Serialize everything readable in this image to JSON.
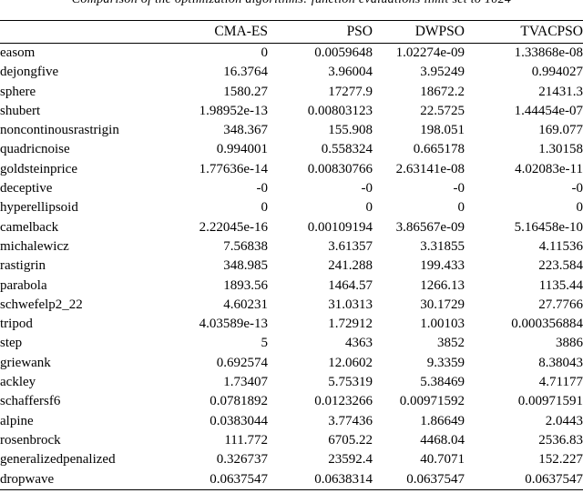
{
  "caption": "Comparison of the optimization algorithms: function evaluations limit set to 1024",
  "table": {
    "columns": [
      "CMA-ES",
      "PSO",
      "DWPSO",
      "TVACPSO"
    ],
    "rows": [
      {
        "name": "easom",
        "values": [
          "0",
          "0.0059648",
          "1.02274e-09",
          "1.33868e-08"
        ]
      },
      {
        "name": "dejongfive",
        "values": [
          "16.3764",
          "3.96004",
          "3.95249",
          "0.994027"
        ]
      },
      {
        "name": "sphere",
        "values": [
          "1580.27",
          "17277.9",
          "18672.2",
          "21431.3"
        ]
      },
      {
        "name": "shubert",
        "values": [
          "1.98952e-13",
          "0.00803123",
          "22.5725",
          "1.44454e-07"
        ]
      },
      {
        "name": "noncontinousrastrigin",
        "values": [
          "348.367",
          "155.908",
          "198.051",
          "169.077"
        ]
      },
      {
        "name": "quadricnoise",
        "values": [
          "0.994001",
          "0.558324",
          "0.665178",
          "1.30158"
        ]
      },
      {
        "name": "goldsteinprice",
        "values": [
          "1.77636e-14",
          "0.00830766",
          "2.63141e-08",
          "4.02083e-11"
        ]
      },
      {
        "name": "deceptive",
        "values": [
          "-0",
          "-0",
          "-0",
          "-0"
        ]
      },
      {
        "name": "hyperellipsoid",
        "values": [
          "0",
          "0",
          "0",
          "0"
        ]
      },
      {
        "name": "camelback",
        "values": [
          "2.22045e-16",
          "0.00109194",
          "3.86567e-09",
          "5.16458e-10"
        ]
      },
      {
        "name": "michalewicz",
        "values": [
          "7.56838",
          "3.61357",
          "3.31855",
          "4.11536"
        ]
      },
      {
        "name": "rastigrin",
        "values": [
          "348.985",
          "241.288",
          "199.433",
          "223.584"
        ]
      },
      {
        "name": "parabola",
        "values": [
          "1893.56",
          "1464.57",
          "1266.13",
          "1135.44"
        ]
      },
      {
        "name": "schwefelp2_22",
        "values": [
          "4.60231",
          "31.0313",
          "30.1729",
          "27.7766"
        ]
      },
      {
        "name": "tripod",
        "values": [
          "4.03589e-13",
          "1.72912",
          "1.00103",
          "0.000356884"
        ]
      },
      {
        "name": "step",
        "values": [
          "5",
          "4363",
          "3852",
          "3886"
        ]
      },
      {
        "name": "griewank",
        "values": [
          "0.692574",
          "12.0602",
          "9.3359",
          "8.38043"
        ]
      },
      {
        "name": "ackley",
        "values": [
          "1.73407",
          "5.75319",
          "5.38469",
          "4.71177"
        ]
      },
      {
        "name": "schaffersf6",
        "values": [
          "0.0781892",
          "0.0123266",
          "0.00971592",
          "0.00971591"
        ]
      },
      {
        "name": "alpine",
        "values": [
          "0.0383044",
          "3.77436",
          "1.86649",
          "2.0443"
        ]
      },
      {
        "name": "rosenbrock",
        "values": [
          "111.772",
          "6705.22",
          "4468.04",
          "2536.83"
        ]
      },
      {
        "name": "generalizedpenalized",
        "values": [
          "0.326737",
          "23592.4",
          "40.7071",
          "152.227"
        ]
      },
      {
        "name": "dropwave",
        "values": [
          "0.0637547",
          "0.0638314",
          "0.0637547",
          "0.0637547"
        ]
      }
    ]
  }
}
